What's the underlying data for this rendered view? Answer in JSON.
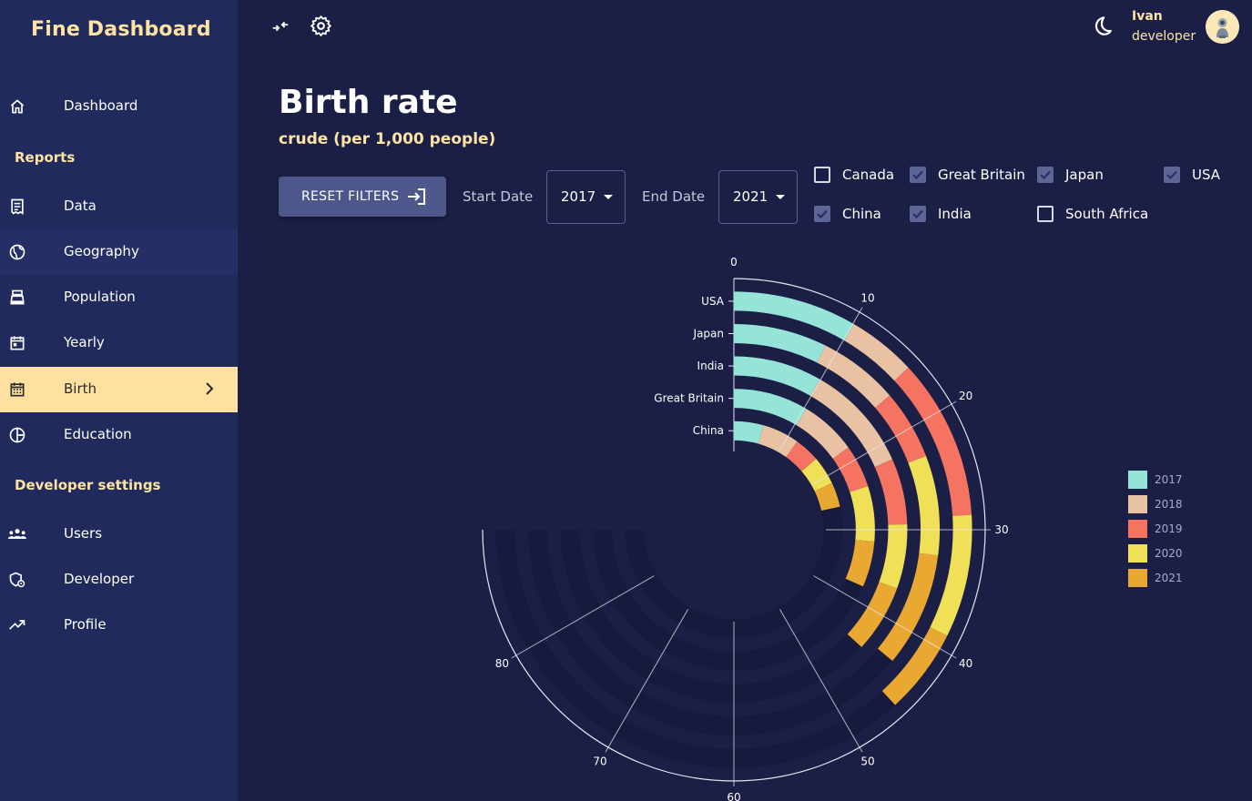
{
  "brand": "Fine Dashboard",
  "sidebar": {
    "items": [
      {
        "label": "Dashboard",
        "icon": "home-icon"
      },
      {
        "label": "Data",
        "icon": "receipt-icon"
      },
      {
        "label": "Geography",
        "icon": "globe-icon"
      },
      {
        "label": "Population",
        "icon": "cash-register-icon"
      },
      {
        "label": "Yearly",
        "icon": "calendar-today-icon"
      },
      {
        "label": "Birth",
        "icon": "calendar-month-icon"
      },
      {
        "label": "Education",
        "icon": "pie-chart-icon"
      },
      {
        "label": "Users",
        "icon": "people-icon"
      },
      {
        "label": "Developer",
        "icon": "admin-settings-icon"
      },
      {
        "label": "Profile",
        "icon": "trending-up-icon"
      }
    ],
    "sections": {
      "reports": "Reports",
      "developer": "Developer settings"
    }
  },
  "user": {
    "name": "Ivan",
    "role": "developer"
  },
  "page": {
    "title": "Birth rate",
    "subtitle": "crude (per 1,000 people)"
  },
  "filters": {
    "reset_label": "RESET FILTERS",
    "start_label": "Start Date",
    "start_value": "2017",
    "end_label": "End Date",
    "end_value": "2021",
    "countries": [
      {
        "name": "Canada",
        "checked": false
      },
      {
        "name": "Great Britain",
        "checked": true
      },
      {
        "name": "Japan",
        "checked": true
      },
      {
        "name": "USA",
        "checked": true
      },
      {
        "name": "China",
        "checked": true
      },
      {
        "name": "India",
        "checked": true
      },
      {
        "name": "South Africa",
        "checked": false
      }
    ]
  },
  "colors": {
    "background": "#1b1f45",
    "sidebar": "#212a5c",
    "accent": "#fee1a1",
    "button": "#4d578c"
  },
  "chart_data": {
    "type": "radial-bar",
    "angle_ticks": [
      "0",
      "10",
      "20",
      "30",
      "40",
      "50",
      "60",
      "70",
      "80"
    ],
    "angle_range": [
      0,
      90
    ],
    "categories": [
      "USA",
      "Japan",
      "India",
      "Great Britain",
      "China"
    ],
    "series": [
      {
        "name": "2017",
        "color": "#96e4d8",
        "values": [
          10.1,
          8.8,
          9.9,
          10.3,
          5.3
        ]
      },
      {
        "name": "2018",
        "color": "#e9c1a3",
        "values": [
          5.6,
          7.6,
          12.1,
          7.8,
          6.6
        ]
      },
      {
        "name": "2019",
        "color": "#f47361",
        "values": [
          13.1,
          6.6,
          7.4,
          5.9,
          4.5
        ]
      },
      {
        "name": "2020",
        "color": "#f0e058",
        "values": [
          10.0,
          9.4,
          7.2,
          7.6,
          5.1
        ]
      },
      {
        "name": "2021",
        "color": "#e8a832",
        "values": [
          7.0,
          10.8,
          7.6,
          6.3,
          4.4
        ]
      }
    ],
    "legend": [
      "2017",
      "2018",
      "2019",
      "2020",
      "2021"
    ],
    "legend_position": "right"
  }
}
